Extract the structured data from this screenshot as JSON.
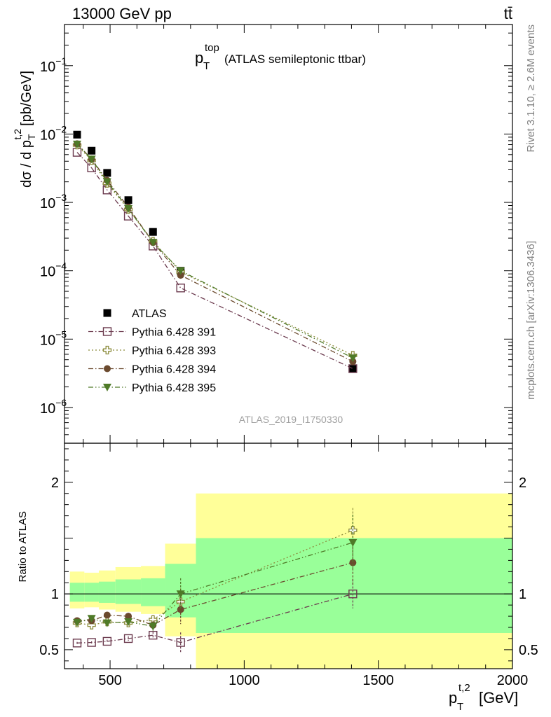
{
  "header": {
    "left": "13000 GeV pp",
    "right": "tt̄"
  },
  "side_labels": {
    "rivet": "Rivet 3.1.10, ≥ 2.6M events",
    "mcplots": "mcplots.cern.ch [arXiv:1306.3436]"
  },
  "main_title": {
    "base": "p",
    "sub": "T",
    "sup": "top",
    "rest": "(ATLAS semileptonic ttbar)"
  },
  "analysis_id": "ATLAS_2019_I1750330",
  "chart_data": [
    {
      "type": "scatter",
      "panel": "main",
      "yscale": "log",
      "ylim": [
        3e-07,
        0.4
      ],
      "xlim": [
        330,
        2000
      ],
      "ylabel": {
        "text": "dσ / d p",
        "sub": "T",
        "sup": "t,2",
        "unit": "[pb/GeV]"
      },
      "ytick_labels": [
        {
          "value": 1e-06,
          "base": "10",
          "exp": "−6"
        },
        {
          "value": 1e-05,
          "base": "10",
          "exp": "−5"
        },
        {
          "value": 0.0001,
          "base": "10",
          "exp": "−4"
        },
        {
          "value": 0.001,
          "base": "10",
          "exp": "−3"
        },
        {
          "value": 0.01,
          "base": "10",
          "exp": "−2"
        },
        {
          "value": 0.1,
          "base": "10",
          "exp": "−1"
        }
      ],
      "legend_position": "lower-left",
      "x": [
        377,
        431,
        489,
        568,
        660,
        763,
        1405
      ],
      "series": [
        {
          "name": "ATLAS",
          "marker": "square-filled",
          "color": "#000000",
          "line": "none",
          "values": [
            0.0098,
            0.0057,
            0.0027,
            0.00108,
            0.00037,
            0.0001,
            3.7e-06
          ]
        },
        {
          "name": "Pythia 6.428 391",
          "marker": "square-open",
          "color": "#6b3a4e",
          "line": "dashdot",
          "values": [
            0.0054,
            0.0032,
            0.00152,
            0.00063,
            0.00023,
            5.6e-05,
            3.7e-06
          ]
        },
        {
          "name": "Pythia 6.428 393",
          "marker": "cross-open",
          "color": "#8c8c3c",
          "line": "dotted",
          "values": [
            0.0069,
            0.0041,
            0.0019,
            0.00079,
            0.00027,
            9.6e-05,
            5.8e-06
          ]
        },
        {
          "name": "Pythia 6.428 394",
          "marker": "circle-filled",
          "color": "#6b4a2e",
          "line": "dashdot",
          "values": [
            0.0072,
            0.0043,
            0.0021,
            0.00085,
            0.00026,
            8.6e-05,
            4.7e-06
          ]
        },
        {
          "name": "Pythia 6.428 395",
          "marker": "triangle-down-filled",
          "color": "#4f7a28",
          "line": "dashdotdot",
          "values": [
            0.0071,
            0.0043,
            0.002,
            0.00081,
            0.00026,
            0.0001,
            5.3e-06
          ]
        }
      ]
    },
    {
      "type": "scatter",
      "panel": "ratio",
      "ylabel": "Ratio to ATLAS",
      "ylim": [
        0.33,
        2.35
      ],
      "xlim": [
        330,
        2000
      ],
      "xlabel": {
        "base": "p",
        "sub": "T",
        "sup": "t,2",
        "unit": "[GeV]"
      },
      "xtick_labels": [
        500,
        1000,
        1500,
        2000
      ],
      "ytick_labels": [
        0.5,
        1,
        2
      ],
      "reference_line": 1,
      "bands": [
        {
          "x0": 350,
          "x1": 404,
          "inner": [
            0.93,
            1.1
          ],
          "outer": [
            0.87,
            1.2
          ]
        },
        {
          "x0": 404,
          "x1": 458,
          "inner": [
            0.93,
            1.1
          ],
          "outer": [
            0.88,
            1.19
          ]
        },
        {
          "x0": 458,
          "x1": 520,
          "inner": [
            0.92,
            1.11
          ],
          "outer": [
            0.86,
            1.21
          ]
        },
        {
          "x0": 520,
          "x1": 615,
          "inner": [
            0.91,
            1.13
          ],
          "outer": [
            0.84,
            1.24
          ]
        },
        {
          "x0": 615,
          "x1": 705,
          "inner": [
            0.89,
            1.14
          ],
          "outer": [
            0.82,
            1.25
          ]
        },
        {
          "x0": 705,
          "x1": 820,
          "inner": [
            0.79,
            1.27
          ],
          "outer": [
            0.62,
            1.45
          ]
        },
        {
          "x0": 820,
          "x1": 2000,
          "inner": [
            0.65,
            1.5
          ],
          "outer": [
            0.33,
            1.9
          ]
        }
      ],
      "x": [
        377,
        431,
        489,
        568,
        660,
        763,
        1405
      ],
      "series": [
        {
          "name": "Pythia 6.428 391",
          "values": [
            0.56,
            0.565,
            0.575,
            0.6,
            0.63,
            0.565,
            1.0
          ],
          "errors": [
            0.01,
            0.01,
            0.015,
            0.02,
            0.03,
            0.09,
            0.13
          ]
        },
        {
          "name": "Pythia 6.428 393",
          "values": [
            0.74,
            0.72,
            0.75,
            0.74,
            0.77,
            0.93,
            1.57
          ],
          "errors": [
            0.015,
            0.02,
            0.02,
            0.03,
            0.04,
            0.12,
            0.2
          ]
        },
        {
          "name": "Pythia 6.428 394",
          "values": [
            0.76,
            0.76,
            0.81,
            0.8,
            0.72,
            0.86,
            1.28
          ],
          "errors": [
            0.015,
            0.02,
            0.025,
            0.03,
            0.04,
            0.13,
            0.2
          ]
        },
        {
          "name": "Pythia 6.428 395",
          "values": [
            0.745,
            0.78,
            0.74,
            0.75,
            0.71,
            1.0,
            1.46
          ],
          "errors": [
            0.015,
            0.02,
            0.025,
            0.03,
            0.04,
            0.14,
            0.25
          ]
        }
      ]
    }
  ]
}
